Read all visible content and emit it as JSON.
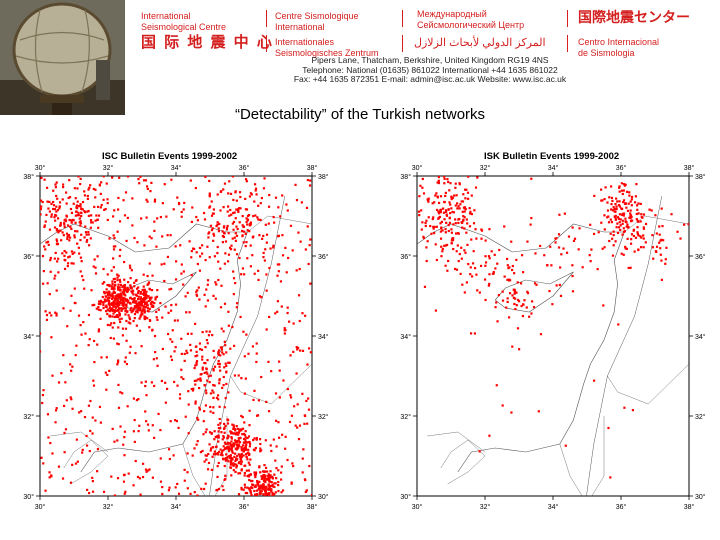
{
  "header": {
    "en_name": "International\nSeismological Centre",
    "fr_name": "Centre Sismologique\nInternational",
    "ru_name": "Международный\nСейсмологический Центр",
    "ja_name": "国際地震センター",
    "zh_name": "国 际 地 震 中 心",
    "de_name": "Internationales\nSeismologisches Zentrum",
    "ar_name": "المركز الدولي لأبحاث الزلازل",
    "es_name": "Centro Internacional\nde Sismologia",
    "address": "Pipers Lane, Thatcham, Berkshire, United Kingdom RG19 4NS",
    "telephone": "Telephone: National (01635) 861022   International +44 1635 861022",
    "fax": "Fax: +44 1635 872351   E-mail: admin@isc.ac.uk   Website: www.isc.ac.uk"
  },
  "slide_title": "“Detectability” of the Turkish networks",
  "colors": {
    "accent": "#d4201f",
    "event": "#ff0000",
    "coast": "#555555"
  },
  "maps": [
    {
      "title": "ISC Bulletin Events 1999-2002",
      "lon_ticks": [
        "30°",
        "32°",
        "34°",
        "36°",
        "38°"
      ],
      "lat_ticks": [
        "38°",
        "36°",
        "34°",
        "32°",
        "30°"
      ],
      "lon_range": [
        30,
        38
      ],
      "lat_range": [
        30,
        38
      ],
      "uniform_events": 760,
      "clusters": [
        {
          "lon": 32.3,
          "lat": 34.9,
          "spread": 0.25,
          "count": 260
        },
        {
          "lon": 33.0,
          "lat": 34.8,
          "spread": 0.22,
          "count": 150
        },
        {
          "lon": 35.7,
          "lat": 31.2,
          "spread": 0.35,
          "count": 260
        },
        {
          "lon": 36.6,
          "lat": 30.2,
          "spread": 0.25,
          "count": 200
        },
        {
          "lon": 30.8,
          "lat": 37.0,
          "spread": 0.6,
          "count": 220
        },
        {
          "lon": 35.8,
          "lat": 36.8,
          "spread": 0.55,
          "count": 130
        },
        {
          "lon": 35.0,
          "lat": 33.5,
          "spread": 0.4,
          "count": 50
        },
        {
          "lon": 34.9,
          "lat": 32.8,
          "spread": 0.3,
          "count": 40
        }
      ]
    },
    {
      "title": "ISK Bulletin Events 1999-2002",
      "lon_ticks": [
        "30°",
        "32°",
        "34°",
        "36°",
        "38°"
      ],
      "lat_ticks": [
        "38°",
        "36°",
        "34°",
        "32°",
        "30°"
      ],
      "lon_range": [
        30,
        38
      ],
      "lat_range": [
        30,
        38
      ],
      "uniform_events": 40,
      "clusters": [
        {
          "lon": 30.9,
          "lat": 37.0,
          "spread": 0.55,
          "count": 210
        },
        {
          "lon": 36.0,
          "lat": 37.1,
          "spread": 0.35,
          "count": 130
        },
        {
          "lon": 36.8,
          "lat": 36.5,
          "spread": 0.45,
          "count": 60
        },
        {
          "lon": 32.3,
          "lat": 35.5,
          "spread": 0.5,
          "count": 60
        },
        {
          "lon": 33.0,
          "lat": 34.9,
          "spread": 0.25,
          "count": 30
        },
        {
          "lon": 34.5,
          "lat": 36.0,
          "spread": 0.6,
          "count": 40
        }
      ]
    }
  ]
}
